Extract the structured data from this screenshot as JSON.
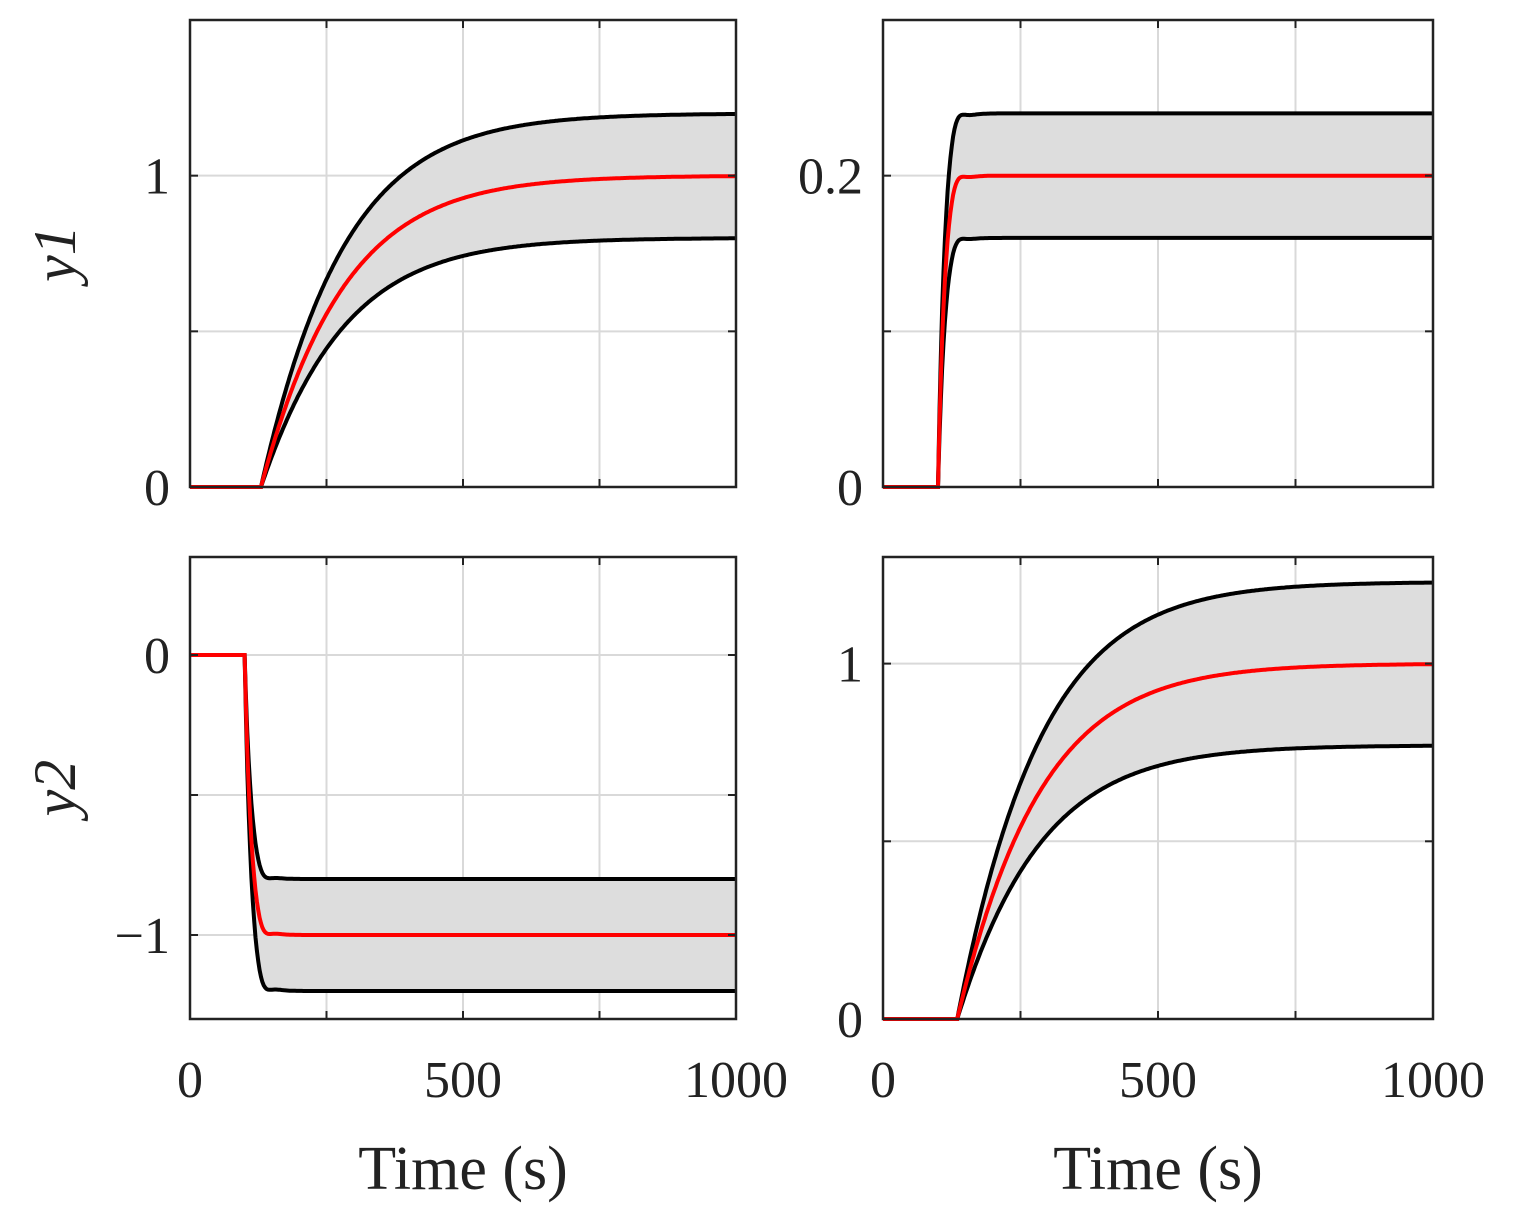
{
  "colors": {
    "band": "#dddddd",
    "bounds": "#000000",
    "nominal": "#ff0000",
    "grid": "#d9d9d9",
    "axes": "#222222"
  },
  "chart_data": [
    {
      "type": "line",
      "id": "y1-u1",
      "ylabel": "y1",
      "xlabel": "",
      "xlim": [
        0,
        1000
      ],
      "ylim": [
        0,
        1.5
      ],
      "xticks": [
        0,
        250,
        500,
        750,
        1000
      ],
      "yticks": [
        0,
        0.5,
        1,
        1.5
      ],
      "ytick_labels": [
        "0",
        "",
        "1",
        ""
      ],
      "xtick_labels": [],
      "grid": true,
      "step_time": 130,
      "tau": 115,
      "series": [
        {
          "name": "upper bound",
          "final": 1.2
        },
        {
          "name": "nominal",
          "final": 1.0
        },
        {
          "name": "lower bound",
          "final": 0.8
        }
      ]
    },
    {
      "type": "line",
      "id": "y1-u2",
      "ylabel": "",
      "xlabel": "",
      "xlim": [
        0,
        1000
      ],
      "ylim": [
        0,
        0.3
      ],
      "xticks": [
        0,
        250,
        500,
        750,
        1000
      ],
      "yticks": [
        0,
        0.1,
        0.2,
        0.3
      ],
      "ytick_labels": [
        "0",
        "",
        "0.2",
        ""
      ],
      "xtick_labels": [],
      "grid": true,
      "step_time": 100,
      "tau": 12,
      "series": [
        {
          "name": "upper bound",
          "final": 0.24
        },
        {
          "name": "nominal",
          "final": 0.2
        },
        {
          "name": "lower bound",
          "final": 0.16
        }
      ]
    },
    {
      "type": "line",
      "id": "y2-u1",
      "ylabel": "y2",
      "xlabel": "Time (s)",
      "xlim": [
        0,
        1000
      ],
      "ylim": [
        -1.3,
        0.35
      ],
      "xticks": [
        0,
        250,
        500,
        750,
        1000
      ],
      "yticks": [
        -1,
        -0.5,
        0
      ],
      "ytick_labels": [
        "−1",
        "",
        "0"
      ],
      "xtick_labels": [
        "0",
        "500",
        "1000"
      ],
      "grid": true,
      "step_time": 100,
      "tau": 12,
      "series": [
        {
          "name": "upper bound",
          "final": -0.8
        },
        {
          "name": "nominal",
          "final": -1.0
        },
        {
          "name": "lower bound",
          "final": -1.2
        }
      ]
    },
    {
      "type": "line",
      "id": "y2-u2",
      "ylabel": "",
      "xlabel": "Time (s)",
      "xlim": [
        0,
        1000
      ],
      "ylim": [
        0,
        1.3
      ],
      "xticks": [
        0,
        250,
        500,
        750,
        1000
      ],
      "yticks": [
        0,
        0.5,
        1
      ],
      "ytick_labels": [
        "0",
        "",
        "1"
      ],
      "xtick_labels": [
        "0",
        "500",
        "1000"
      ],
      "grid": true,
      "step_time": 135,
      "tau": 115,
      "series": [
        {
          "name": "upper bound",
          "final": 1.23
        },
        {
          "name": "nominal",
          "final": 1.0
        },
        {
          "name": "lower bound",
          "final": 0.77
        }
      ]
    }
  ]
}
